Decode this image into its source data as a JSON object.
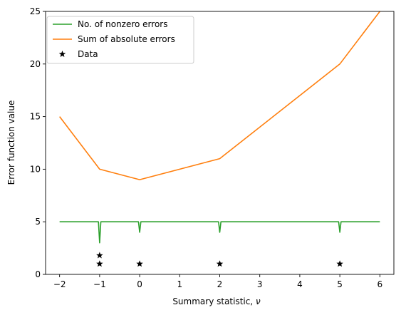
{
  "chart_data": {
    "type": "line",
    "xlabel": "Summary statistic, ",
    "xlabel_symbol": "ν",
    "ylabel": "Error function value",
    "xlim": [
      -2.35,
      6.35
    ],
    "ylim": [
      0,
      25
    ],
    "xticks": [
      -2,
      -1,
      0,
      1,
      2,
      3,
      4,
      5,
      6
    ],
    "yticks": [
      0,
      5,
      10,
      15,
      20,
      25
    ],
    "grid": false,
    "legend_placement": "top-left",
    "series": [
      {
        "name": "No. of nonzero errors",
        "type": "line",
        "color": "#2ca02c",
        "x": [
          -2,
          -1.03,
          -1,
          -0.97,
          -0.03,
          0,
          0.03,
          1.97,
          2,
          2.03,
          4.97,
          5,
          5.03,
          6
        ],
        "y": [
          5,
          5,
          3,
          5,
          5,
          4,
          5,
          5,
          4,
          5,
          5,
          4,
          5,
          5
        ]
      },
      {
        "name": "Sum of absolute errors",
        "type": "line",
        "color": "#ff7f0e",
        "x": [
          -2,
          -1,
          0,
          2,
          5,
          6
        ],
        "y": [
          15,
          10,
          9,
          11,
          20,
          25
        ]
      },
      {
        "name": "Data",
        "type": "scatter",
        "marker": "star",
        "color": "#000000",
        "x": [
          -1,
          -1,
          0,
          2,
          5
        ],
        "y": [
          1.8,
          1.0,
          1.0,
          1.0,
          1.0
        ]
      }
    ]
  }
}
